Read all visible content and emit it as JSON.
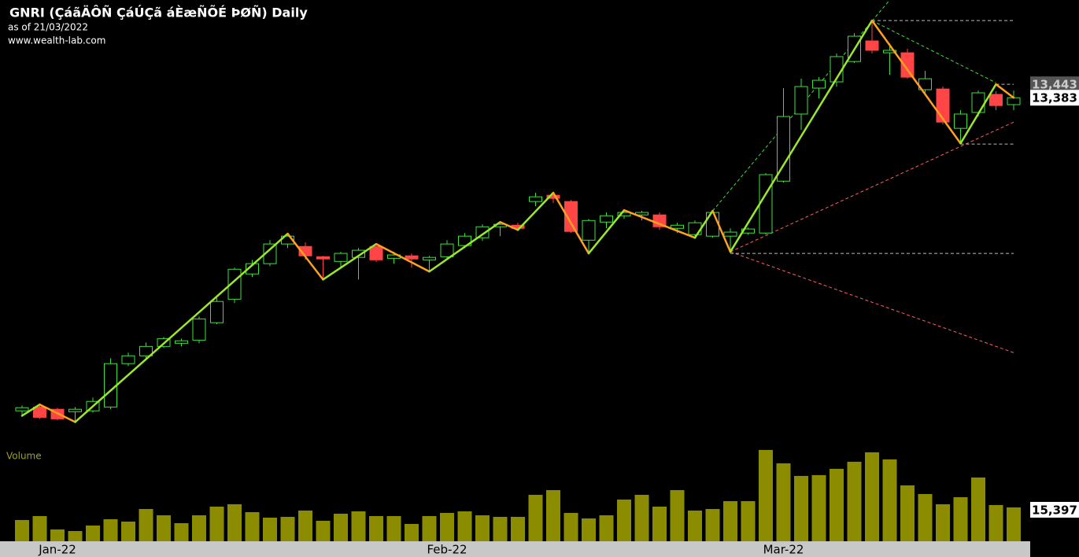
{
  "chart_data": {
    "type": "candlestick",
    "title": "GNRI (ÇáãÄÔÑ ÇáÚÇã áÈæÑÕÉ ÞØÑ) Daily",
    "subtitle": "as of 21/03/2022",
    "source": "www.wealth-lab.com",
    "categories": [
      null,
      null,
      "Jan-22",
      null,
      null,
      null,
      null,
      null,
      null,
      null,
      null,
      null,
      null,
      null,
      null,
      null,
      null,
      null,
      null,
      null,
      null,
      null,
      null,
      null,
      "Feb-22",
      null,
      null,
      null,
      null,
      null,
      null,
      null,
      null,
      null,
      null,
      null,
      null,
      null,
      null,
      null,
      null,
      null,
      null,
      "Mar-22",
      null,
      null,
      null,
      null,
      null,
      null,
      null,
      null,
      null,
      null,
      null,
      null,
      null
    ],
    "open": [
      11983,
      12000,
      11990,
      11979,
      11983,
      12000,
      12194,
      12229,
      12271,
      12285,
      12299,
      12377,
      12482,
      12595,
      12641,
      12729,
      12718,
      12672,
      12651,
      12669,
      12718,
      12665,
      12676,
      12658,
      12672,
      12722,
      12757,
      12806,
      12813,
      12919,
      12947,
      12919,
      12746,
      12827,
      12855,
      12859,
      12859,
      12799,
      12771,
      12764,
      12764,
      12778,
      12778,
      13010,
      13310,
      13426,
      13454,
      13545,
      13637,
      13584,
      13584,
      13419,
      13422,
      13246,
      13317,
      13398,
      13352
    ],
    "high": [
      12007,
      12011,
      11997,
      12000,
      12042,
      12218,
      12243,
      12289,
      12313,
      12306,
      12405,
      12489,
      12623,
      12658,
      12746,
      12775,
      12736,
      12676,
      12694,
      12711,
      12729,
      12694,
      12687,
      12676,
      12746,
      12778,
      12817,
      12827,
      12824,
      12958,
      12958,
      12926,
      12841,
      12870,
      12880,
      12877,
      12870,
      12824,
      12834,
      12877,
      12799,
      12803,
      13046,
      13426,
      13468,
      13475,
      13581,
      13672,
      13728,
      13626,
      13602,
      13503,
      13433,
      13327,
      13415,
      13412,
      13415
    ],
    "low": [
      11961,
      11947,
      11940,
      11933,
      11975,
      11990,
      12183,
      12208,
      12264,
      12271,
      12285,
      12370,
      12465,
      12581,
      12630,
      12711,
      12658,
      12570,
      12623,
      12570,
      12648,
      12641,
      12623,
      12606,
      12658,
      12711,
      12743,
      12764,
      12792,
      12898,
      12912,
      12778,
      12687,
      12799,
      12841,
      12834,
      12792,
      12778,
      12757,
      12757,
      12694,
      12771,
      12771,
      13003,
      13239,
      13380,
      13433,
      13538,
      13581,
      13486,
      13468,
      13405,
      13264,
      13179,
      13299,
      13327,
      13327
    ],
    "close": [
      11997,
      11954,
      11947,
      11990,
      12025,
      12194,
      12229,
      12271,
      12306,
      12296,
      12394,
      12472,
      12616,
      12641,
      12729,
      12764,
      12676,
      12662,
      12687,
      12701,
      12658,
      12680,
      12662,
      12669,
      12729,
      12764,
      12806,
      12817,
      12799,
      12940,
      12933,
      12785,
      12834,
      12855,
      12870,
      12870,
      12806,
      12813,
      12824,
      12870,
      12782,
      12796,
      13039,
      13299,
      13433,
      13461,
      13567,
      13658,
      13595,
      13595,
      13475,
      13468,
      13274,
      13310,
      13405,
      13348,
      13383
    ],
    "up_color": "#3ee03e",
    "down_color": "#ff4545",
    "ylim": [
      11850,
      13820
    ],
    "volume": {
      "label": "Volume",
      "color": "#8c8c00",
      "values": [
        9666,
        11456,
        5370,
        4654,
        7160,
        10024,
        8950,
        14678,
        11814,
        8234,
        11814,
        15752,
        16826,
        13246,
        10740,
        11098,
        13962,
        9308,
        12530,
        13604,
        11456,
        11456,
        7876,
        11456,
        12888,
        13604,
        11814,
        11098,
        11098,
        21122,
        23270,
        12888,
        10382,
        11814,
        18974,
        21122,
        15752,
        23270,
        13962,
        14678,
        18258,
        18258,
        41528,
        35442,
        29714,
        30072,
        32936,
        36158,
        40454,
        37232,
        25418,
        21480,
        16826,
        20048,
        28998,
        16468,
        15397
      ],
      "ylim": [
        0,
        41500
      ]
    },
    "zigzag": {
      "up_color": "#9be82a",
      "down_color": "#ffa020",
      "x": [
        0,
        1,
        3,
        15,
        17,
        20,
        23,
        27,
        28,
        30,
        32,
        34,
        38,
        39,
        40,
        48,
        53,
        55,
        56
      ],
      "values": [
        11961,
        12011,
        11933,
        12775,
        12570,
        12729,
        12606,
        12827,
        12792,
        12958,
        12687,
        12880,
        12757,
        12877,
        12694,
        13728,
        13179,
        13443,
        13383
      ]
    },
    "lines": [
      {
        "color": "#3ee03e",
        "x": [
          39,
          49
        ],
        "values": [
          12877,
          13820
        ]
      },
      {
        "color": "#3ee03e",
        "x": [
          48,
          55
        ],
        "values": [
          13728,
          13450
        ]
      },
      {
        "color": "#ff6060",
        "x": [
          40,
          56
        ],
        "values": [
          12694,
          13274
        ]
      },
      {
        "color": "#ff6060",
        "x": [
          40,
          56
        ],
        "values": [
          12694,
          12243
        ]
      },
      {
        "color": "#bbbbbb",
        "x": [
          40,
          56
        ],
        "values": [
          12687,
          12687
        ]
      },
      {
        "color": "#bbbbbb",
        "x": [
          48,
          56
        ],
        "values": [
          13728,
          13728
        ]
      },
      {
        "color": "#bbbbbb",
        "x": [
          53,
          56
        ],
        "values": [
          13176,
          13176
        ]
      },
      {
        "color": "#bbbbbb",
        "x": [
          55,
          56
        ],
        "values": [
          13443,
          13443
        ]
      }
    ],
    "price_labels": [
      {
        "value": 13443,
        "label": "13,443"
      },
      {
        "value": 13383,
        "label": "13,383"
      }
    ],
    "volume_label": {
      "value": 15397,
      "label": "15,397"
    }
  }
}
